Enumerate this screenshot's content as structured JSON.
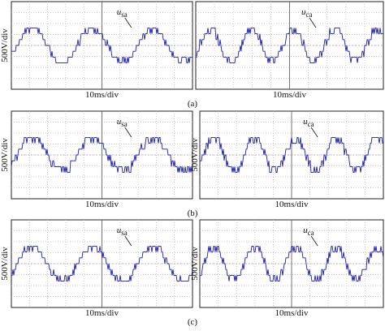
{
  "figure": {
    "rows": [
      {
        "label": "(a)",
        "panels": [
          {
            "y_scale": "500V/div",
            "x_scale": "10ms/div",
            "signal": {
              "symbol": "u",
              "subscript": "sa"
            }
          },
          {
            "x_scale": "10ms/div",
            "signal": {
              "symbol": "u",
              "subscript": "ca"
            }
          }
        ]
      },
      {
        "label": "(b)",
        "panels": [
          {
            "y_scale": "500V/div",
            "x_scale": "10ms/div",
            "signal": {
              "symbol": "u",
              "subscript": "sa"
            }
          },
          {
            "y_scale": "500V/div",
            "x_scale": "10ms/div",
            "signal": {
              "symbol": "u",
              "subscript": "ca"
            }
          }
        ]
      },
      {
        "label": "(c)",
        "panels": [
          {
            "y_scale": "500V/div",
            "x_scale": "10ms/div",
            "signal": {
              "symbol": "u",
              "subscript": "sa"
            }
          },
          {
            "y_scale": "500V/div",
            "x_scale": "10ms/div",
            "signal": {
              "symbol": "u",
              "subscript": "ca"
            }
          }
        ]
      }
    ]
  }
}
